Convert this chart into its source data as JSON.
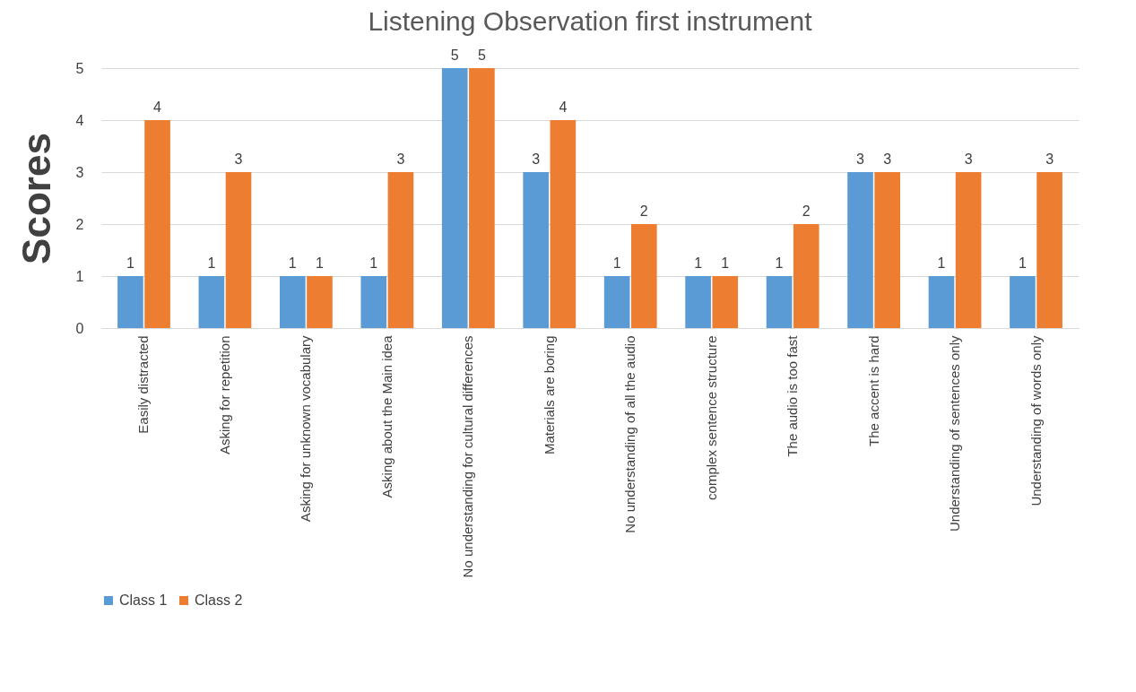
{
  "chart_data": {
    "type": "bar",
    "title": "Listening Observation first instrument",
    "ylabel": "Scores",
    "categories": [
      "Easily distracted",
      "Asking for repetition",
      "Asking for unknown vocabulary",
      "Asking about the Main idea",
      "No understanding for cultural differences",
      "Materials are boring",
      "No understanding of all the audio",
      "complex sentence structure",
      "The audio is too fast",
      "The accent is hard",
      "Understanding of sentences only",
      "Understanding of words only"
    ],
    "series": [
      {
        "name": "Class 1",
        "color": "#5b9bd5",
        "values": [
          1,
          1,
          1,
          1,
          5,
          3,
          1,
          1,
          1,
          3,
          1,
          1
        ]
      },
      {
        "name": "Class 2",
        "color": "#ed7d31",
        "values": [
          4,
          3,
          1,
          3,
          5,
          4,
          2,
          1,
          2,
          3,
          3,
          3
        ]
      }
    ],
    "ylim": [
      0,
      5
    ],
    "yticks": [
      0,
      1,
      2,
      3,
      4,
      5
    ],
    "grid": "y",
    "legend": "bottom",
    "data_labels": true
  }
}
